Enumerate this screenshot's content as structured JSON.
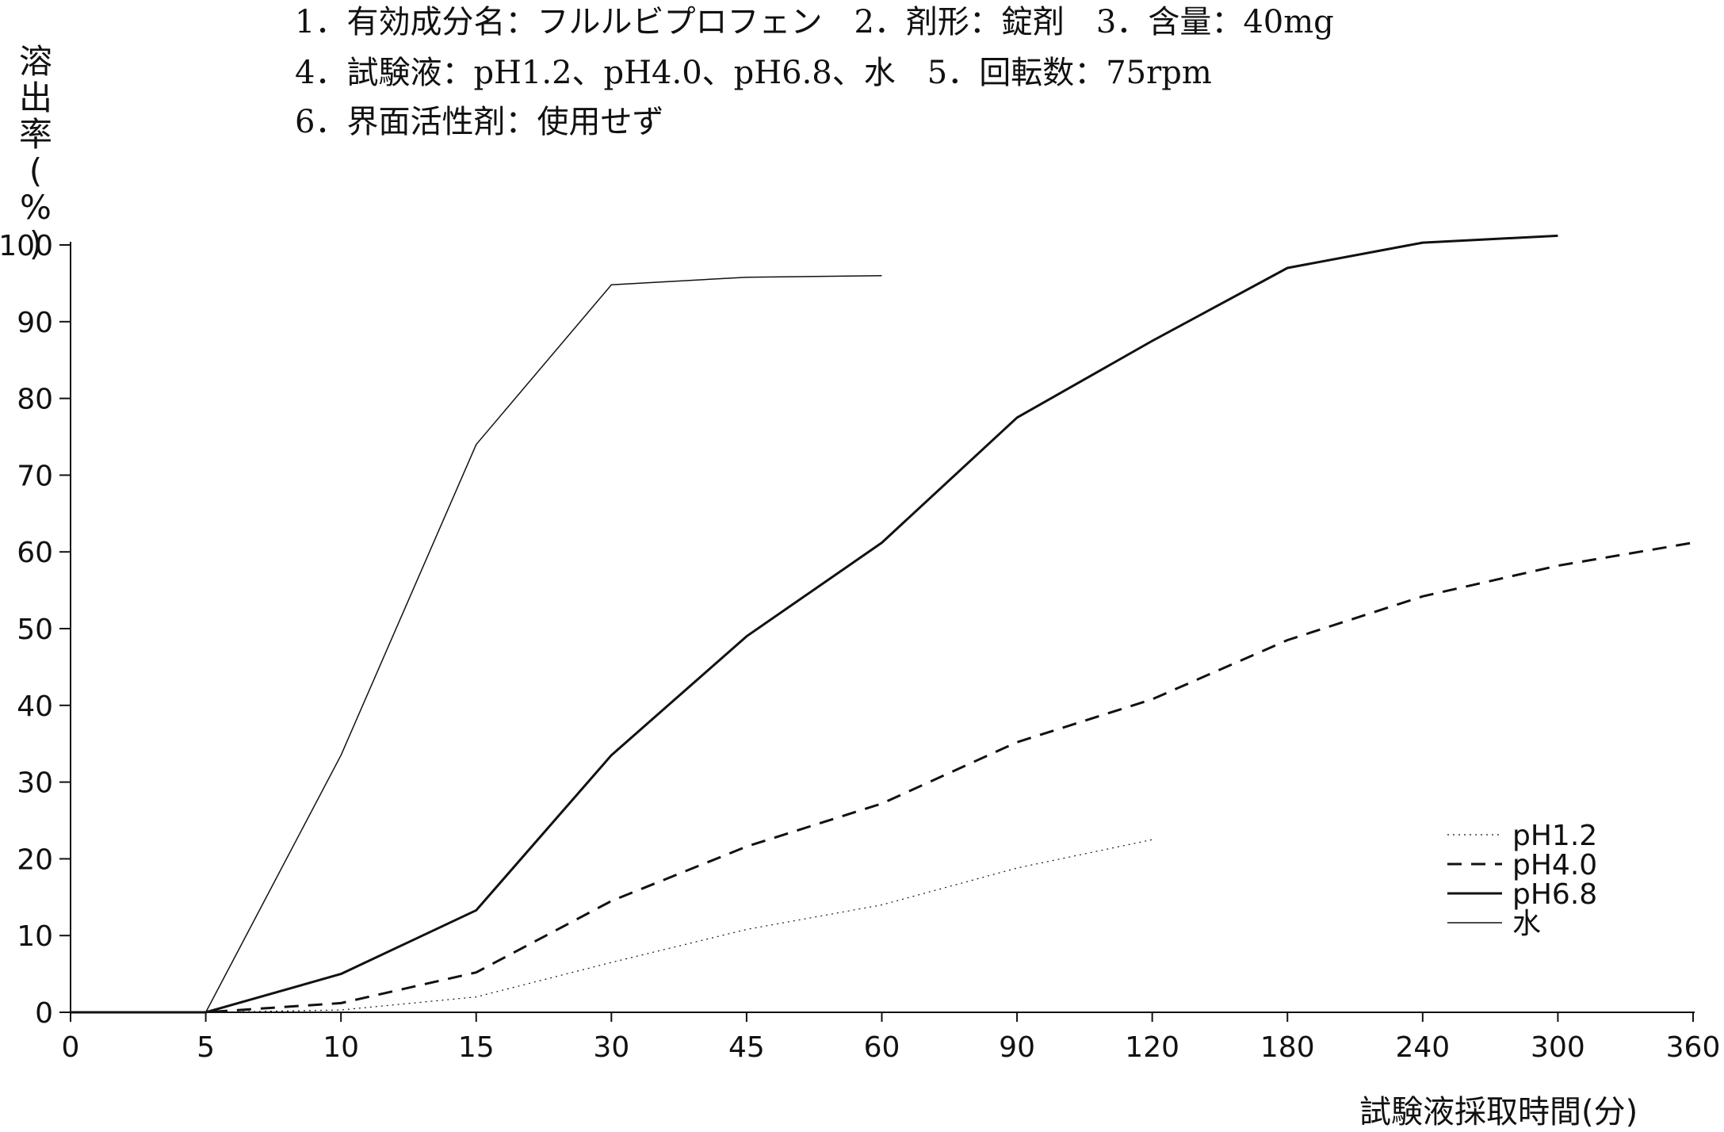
{
  "header": {
    "line1": "1．有効成分名：フルルビプロフェン　2．剤形：錠剤　3．含量：40mg",
    "line2": "4．試験液：pH1.2、pH4.0、pH6.8、水　5．回転数：75rpm",
    "line3": "6．界面活性剤：使用せず"
  },
  "chart_data": {
    "type": "line",
    "ylabel": "溶出率(%)",
    "ylabel_chars": [
      "溶",
      "出",
      "率",
      "(",
      "%",
      ")"
    ],
    "xlabel": "試験液採取時間(分)",
    "categories": [
      "0",
      "5",
      "10",
      "15",
      "30",
      "45",
      "60",
      "90",
      "120",
      "180",
      "240",
      "300",
      "360"
    ],
    "y_ticks": [
      "0",
      "10",
      "20",
      "30",
      "40",
      "50",
      "60",
      "70",
      "80",
      "90",
      "100"
    ],
    "ylim": [
      0,
      100
    ],
    "grid": false,
    "legend_position": "bottom-right",
    "series": [
      {
        "name": "pH1.2",
        "style": "dotted",
        "stroke_width": 1.2,
        "values": [
          0,
          0,
          0.3,
          2,
          6.5,
          10.8,
          14,
          18.8,
          22.5,
          null,
          null,
          null,
          null
        ]
      },
      {
        "name": "pH4.0",
        "style": "dashed",
        "stroke_width": 3,
        "values": [
          0,
          0,
          1.2,
          5.2,
          14.5,
          21.6,
          27.2,
          35.2,
          40.8,
          48.5,
          54.2,
          58.2,
          61.2
        ]
      },
      {
        "name": "pH6.8",
        "style": "solid",
        "stroke_width": 3,
        "values": [
          0,
          0,
          5,
          13.3,
          33.5,
          49,
          61.2,
          77.5,
          87.5,
          97,
          100.3,
          101.2,
          null
        ]
      },
      {
        "name": "水",
        "style": "solid",
        "stroke_width": 1.5,
        "values": [
          0,
          0,
          33.5,
          74,
          94.8,
          95.8,
          96,
          null,
          null,
          null,
          null,
          null,
          null
        ]
      }
    ],
    "colors": {
      "line": "#111111",
      "axis": "#111111"
    }
  }
}
